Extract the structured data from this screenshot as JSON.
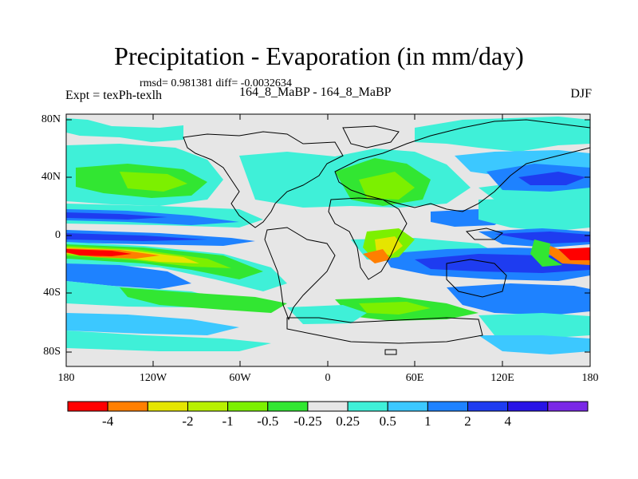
{
  "title": "Precipitation - Evaporation (in mm/day)",
  "stats": "rmsd= 0.981381 diff= -0.0032634",
  "experiment": "Expt = texPh-texlh",
  "run_label": "164_8_MaBP - 164_8_MaBP",
  "season": "DJF",
  "lat_ticks": [
    "80N",
    "40N",
    "0",
    "40S",
    "80S"
  ],
  "lon_ticks": [
    "180",
    "120W",
    "60W",
    "0",
    "60E",
    "120E",
    "180"
  ],
  "colorbar": {
    "colors": [
      "#ff0000",
      "#ff7f00",
      "#e5e500",
      "#b8f000",
      "#7cf000",
      "#32e632",
      "#e6e6e6",
      "#3ff0d8",
      "#3cc8ff",
      "#1e82ff",
      "#1e3cf0",
      "#2814e6",
      "#7a28e6"
    ],
    "labels": [
      "-4",
      "-2",
      "-1",
      "-0.5",
      "-0.25",
      "0.25",
      "0.5",
      "1",
      "2",
      "4"
    ],
    "label_boundaries": [
      1,
      3,
      4,
      5,
      6,
      7,
      8,
      9,
      10,
      11
    ]
  },
  "legend_colors": {
    "red": "#ff0000",
    "orange": "#ff7f00",
    "yellow": "#e5e500",
    "yellowgreen": "#b8f000",
    "lime": "#7cf000",
    "green": "#32e632",
    "gray": "#e6e6e6",
    "cyan": "#3ff0d8",
    "sky": "#3cc8ff",
    "blue": "#1e82ff",
    "dblue": "#1e3cf0",
    "navy": "#2814e6",
    "purple": "#7a28e6"
  }
}
